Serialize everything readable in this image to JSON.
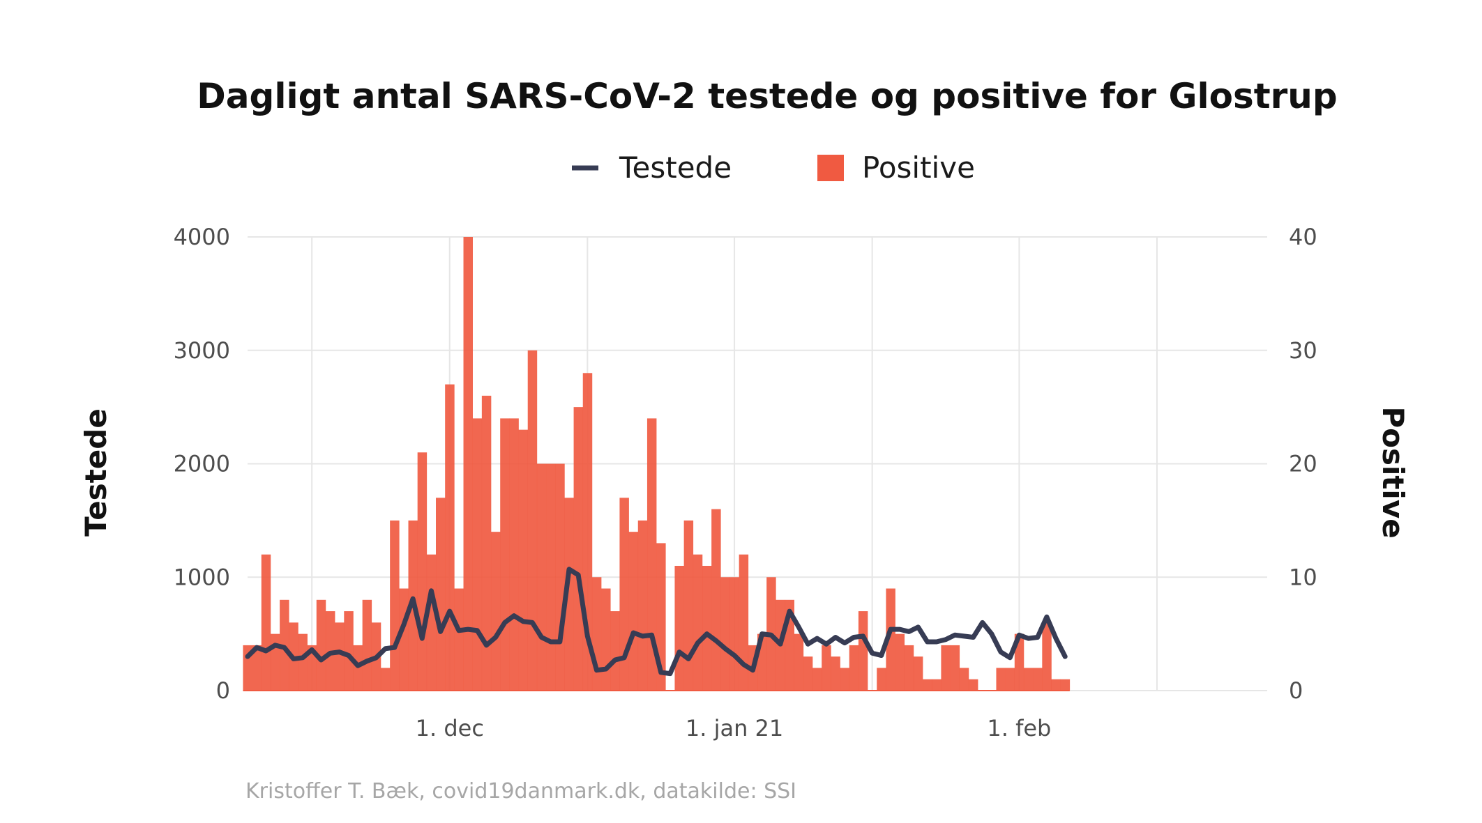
{
  "title": "Dagligt antal SARS-CoV-2 testede og positive for Glostrup",
  "caption": "Kristoffer T. Bæk, covid19danmark.dk, datakilde: SSI",
  "legend": [
    {
      "label": "Testede",
      "kind": "line",
      "color": "#373C54"
    },
    {
      "label": "Positive",
      "kind": "bar",
      "color": "#F05A41"
    }
  ],
  "colors": {
    "testede": "#373C54",
    "positive": "#F05A41",
    "grid": "#e6e6e6"
  },
  "chart_data": {
    "type": "bar",
    "title": "Dagligt antal SARS-CoV-2 testede og positive for Glostrup",
    "ylabel_left": "Testede",
    "ylabel_right": "Positive",
    "ylim_left": [
      0,
      4000
    ],
    "ylim_right": [
      0,
      40
    ],
    "y_ticks_left": [
      "0",
      "1000",
      "2000",
      "3000",
      "4000"
    ],
    "y_ticks_right": [
      "0",
      "10",
      "20",
      "30",
      "40"
    ],
    "x_ticks": [
      {
        "label": "1. dec",
        "date": "2020-12-01"
      },
      {
        "label": "1. jan 21",
        "date": "2021-01-01"
      },
      {
        "label": "1. feb",
        "date": "2021-02-01"
      }
    ],
    "x_range": [
      "2020-11-09",
      "2021-02-28"
    ],
    "start_date": "2020-11-02",
    "grid": true,
    "legend_position": "top",
    "series": [
      {
        "name": "Positive",
        "type": "bar",
        "axis": "right",
        "values": [
          4,
          4,
          12,
          5,
          8,
          6,
          5,
          4,
          8,
          7,
          6,
          7,
          4,
          8,
          6,
          2,
          15,
          9,
          15,
          21,
          12,
          17,
          27,
          9,
          40,
          24,
          26,
          14,
          24,
          24,
          23,
          30,
          20,
          20,
          20,
          17,
          25,
          28,
          10,
          9,
          7,
          17,
          14,
          15,
          24,
          13,
          0,
          11,
          15,
          12,
          11,
          16,
          10,
          10,
          12,
          4,
          5,
          10,
          8,
          8,
          5,
          3,
          2,
          4,
          3,
          2,
          4,
          7,
          0,
          2,
          9,
          5,
          4,
          3,
          1,
          1,
          4,
          4,
          2,
          1,
          0,
          0,
          2,
          2,
          5,
          2,
          2,
          6,
          1,
          1
        ]
      },
      {
        "name": "Testede",
        "type": "line",
        "axis": "left",
        "values": [
          300,
          380,
          350,
          400,
          380,
          280,
          290,
          360,
          270,
          330,
          340,
          310,
          220,
          260,
          290,
          370,
          380,
          580,
          810,
          460,
          880,
          520,
          700,
          530,
          540,
          530,
          400,
          470,
          600,
          660,
          610,
          600,
          470,
          430,
          430,
          1070,
          1020,
          480,
          180,
          190,
          270,
          290,
          510,
          480,
          490,
          160,
          150,
          340,
          280,
          420,
          500,
          440,
          370,
          310,
          230,
          180,
          500,
          490,
          410,
          700,
          560,
          410,
          460,
          410,
          470,
          420,
          470,
          480,
          330,
          310,
          540,
          540,
          520,
          560,
          430,
          430,
          450,
          490,
          480,
          470,
          600,
          500,
          340,
          290,
          490,
          460,
          470,
          650,
          460,
          300
        ]
      }
    ]
  }
}
